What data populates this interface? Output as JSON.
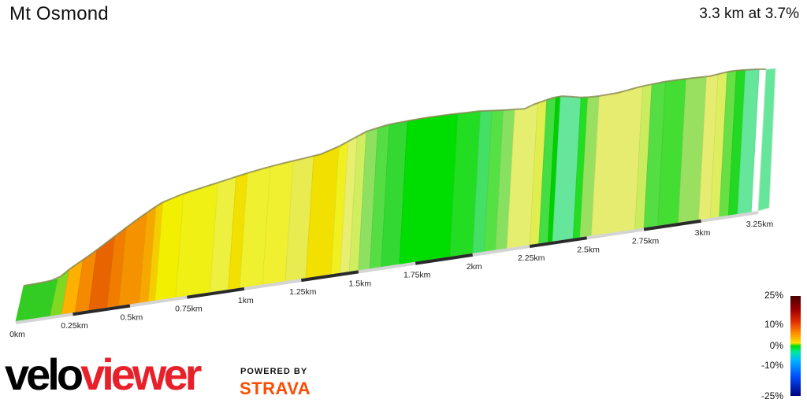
{
  "header": {
    "title": "Mt Osmond",
    "stats": "3.3 km at 3.7%"
  },
  "chart_data": {
    "type": "area",
    "title": "Mt Osmond",
    "subtitle": "3.3 km at 3.7%",
    "x_unit": "km",
    "xlim": [
      0,
      3.3
    ],
    "x_ticks": [
      {
        "value": 0,
        "label": "0km"
      },
      {
        "value": 0.25,
        "label": "0.25km"
      },
      {
        "value": 0.5,
        "label": "0.5km"
      },
      {
        "value": 0.75,
        "label": "0.75km"
      },
      {
        "value": 1.0,
        "label": "1km"
      },
      {
        "value": 1.25,
        "label": "1.25km"
      },
      {
        "value": 1.5,
        "label": "1.5km"
      },
      {
        "value": 1.75,
        "label": "1.75km"
      },
      {
        "value": 2.0,
        "label": "2km"
      },
      {
        "value": 2.25,
        "label": "2.25km"
      },
      {
        "value": 2.5,
        "label": "2.5km"
      },
      {
        "value": 2.75,
        "label": "2.75km"
      },
      {
        "value": 3.0,
        "label": "3km"
      },
      {
        "value": 3.25,
        "label": "3.25km"
      }
    ],
    "segments": [
      {
        "from": 0.0,
        "to": 0.15,
        "color": "#33cc22"
      },
      {
        "from": 0.15,
        "to": 0.2,
        "color": "#7fd822"
      },
      {
        "from": 0.2,
        "to": 0.26,
        "color": "#ffb000"
      },
      {
        "from": 0.26,
        "to": 0.32,
        "color": "#f58a00"
      },
      {
        "from": 0.32,
        "to": 0.4,
        "color": "#e86400"
      },
      {
        "from": 0.4,
        "to": 0.45,
        "color": "#f07d00"
      },
      {
        "from": 0.45,
        "to": 0.54,
        "color": "#f59200"
      },
      {
        "from": 0.54,
        "to": 0.58,
        "color": "#f7a800"
      },
      {
        "from": 0.58,
        "to": 0.61,
        "color": "#f5cc00"
      },
      {
        "from": 0.61,
        "to": 0.7,
        "color": "#f2f000"
      },
      {
        "from": 0.7,
        "to": 0.85,
        "color": "#f0f014"
      },
      {
        "from": 0.85,
        "to": 0.93,
        "color": "#eef040"
      },
      {
        "from": 0.93,
        "to": 0.98,
        "color": "#f2e000"
      },
      {
        "from": 0.98,
        "to": 1.08,
        "color": "#eef030"
      },
      {
        "from": 1.08,
        "to": 1.18,
        "color": "#f0f030"
      },
      {
        "from": 1.18,
        "to": 1.27,
        "color": "#e9ec50"
      },
      {
        "from": 1.27,
        "to": 1.38,
        "color": "#f2e000"
      },
      {
        "from": 1.38,
        "to": 1.42,
        "color": "#f0f020"
      },
      {
        "from": 1.42,
        "to": 1.46,
        "color": "#e8ee70"
      },
      {
        "from": 1.46,
        "to": 1.5,
        "color": "#d0ee60"
      },
      {
        "from": 1.5,
        "to": 1.55,
        "color": "#8ee060"
      },
      {
        "from": 1.55,
        "to": 1.6,
        "color": "#55dd44"
      },
      {
        "from": 1.6,
        "to": 1.68,
        "color": "#33d833"
      },
      {
        "from": 1.68,
        "to": 1.9,
        "color": "#00dd00"
      },
      {
        "from": 1.9,
        "to": 2.0,
        "color": "#22dd22"
      },
      {
        "from": 2.0,
        "to": 2.05,
        "color": "#44e066"
      },
      {
        "from": 2.05,
        "to": 2.1,
        "color": "#55e044"
      },
      {
        "from": 2.1,
        "to": 2.15,
        "color": "#88e060"
      },
      {
        "from": 2.15,
        "to": 2.25,
        "color": "#e6ee70"
      },
      {
        "from": 2.25,
        "to": 2.29,
        "color": "#e0ee50"
      },
      {
        "from": 2.29,
        "to": 2.33,
        "color": "#44dd44"
      },
      {
        "from": 2.33,
        "to": 2.35,
        "color": "#00d000"
      },
      {
        "from": 2.35,
        "to": 2.44,
        "color": "#66e69a"
      },
      {
        "from": 2.44,
        "to": 2.47,
        "color": "#22dd22"
      },
      {
        "from": 2.47,
        "to": 2.52,
        "color": "#9ae060"
      },
      {
        "from": 2.52,
        "to": 2.71,
        "color": "#e6ec70"
      },
      {
        "from": 2.71,
        "to": 2.75,
        "color": "#ccec60"
      },
      {
        "from": 2.75,
        "to": 2.81,
        "color": "#55dd44"
      },
      {
        "from": 2.81,
        "to": 2.9,
        "color": "#44dd33"
      },
      {
        "from": 2.9,
        "to": 2.99,
        "color": "#99e060"
      },
      {
        "from": 2.99,
        "to": 3.04,
        "color": "#e6ec70"
      },
      {
        "from": 3.04,
        "to": 3.08,
        "color": "#ddee60"
      },
      {
        "from": 3.08,
        "to": 3.12,
        "color": "#66e044"
      },
      {
        "from": 3.12,
        "to": 3.16,
        "color": "#22d822"
      },
      {
        "from": 3.16,
        "to": 3.22,
        "color": "#66e69a"
      }
    ],
    "grade_legend": {
      "labels": [
        "25%",
        "10%",
        "0%",
        "-10%",
        "-25%"
      ]
    }
  },
  "branding": {
    "velo": "velo",
    "viewer": "viewer",
    "powered_by": "POWERED BY",
    "strava": "STRAVA"
  }
}
